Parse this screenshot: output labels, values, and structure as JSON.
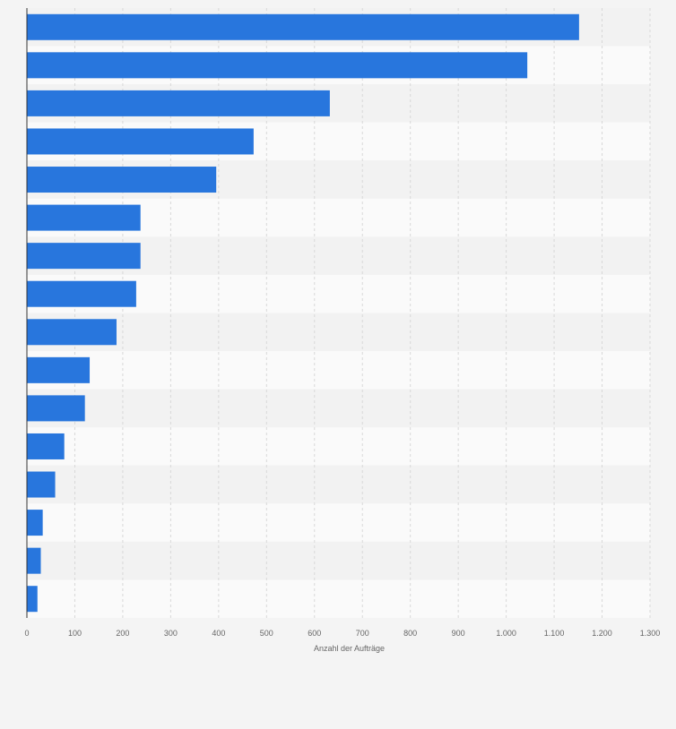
{
  "chart_data": {
    "type": "bar",
    "orientation": "horizontal",
    "categories": [
      "",
      "",
      "",
      "",
      "",
      "",
      "",
      "",
      "",
      "",
      "",
      "",
      "",
      "",
      "",
      ""
    ],
    "values": [
      1152,
      1044,
      632,
      473,
      395,
      237,
      237,
      228,
      187,
      131,
      121,
      78,
      59,
      33,
      29,
      22
    ],
    "xlabel": "Anzahl der Aufträge",
    "ylabel": "",
    "xlim": [
      0,
      1300
    ],
    "xticks": [
      0,
      100,
      200,
      300,
      400,
      500,
      600,
      700,
      800,
      900,
      1000,
      1100,
      1200,
      1300
    ],
    "xtick_labels": [
      "0",
      "100",
      "200",
      "300",
      "400",
      "500",
      "600",
      "700",
      "800",
      "900",
      "1.000",
      "1.100",
      "1.200",
      "1.300"
    ],
    "grid": true,
    "legend": "none",
    "colors": {
      "bar": "#2876dd",
      "band_light": "#fafafa",
      "band_dark": "#f2f2f2",
      "page_background": "#f4f4f4",
      "grid": "#d8d8d8",
      "axis": "#333333",
      "tick_text": "#666666"
    }
  }
}
